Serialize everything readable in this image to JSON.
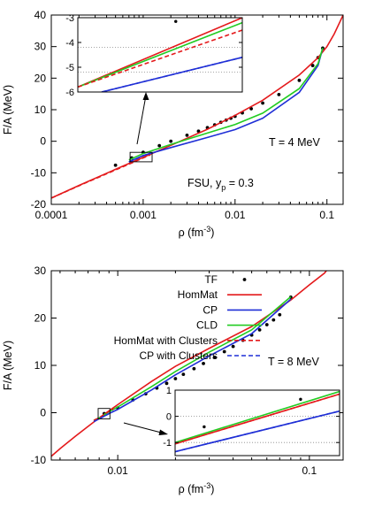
{
  "chart_data": [
    {
      "type": "line",
      "xscale": "log",
      "xlabel": "ρ (fm",
      "xlabel_sup": "-3",
      "xlabel_end": ")",
      "ylabel": "F/A (MeV)",
      "xlim": [
        0.0001,
        0.15
      ],
      "ylim": [
        -20,
        40
      ],
      "xticks": [
        0.0001,
        0.001,
        0.01,
        0.1
      ],
      "xtick_labels": [
        "0.0001",
        "0.001",
        "0.01",
        "0.1"
      ],
      "yticks": [
        -20,
        -10,
        0,
        10,
        20,
        30,
        40
      ],
      "ytick_labels": [
        "-20",
        "-10",
        "0",
        "10",
        "20",
        "30",
        "40"
      ],
      "annotations": [
        {
          "text": "T = 4 MeV",
          "x": 0.03,
          "y": 3
        },
        {
          "text": "FSU, y",
          "sub": "p",
          "rest": " = 0.3",
          "x": 0.0012,
          "y": -9.5
        }
      ],
      "zoom_box": {
        "xlim": [
          0.00072,
          0.00125
        ],
        "ylim": [
          -6.5,
          -3.5
        ]
      },
      "series": [
        {
          "name": "TF",
          "style": "points",
          "color": "#000000",
          "x": [
            0.0005,
            0.00075,
            0.001,
            0.0015,
            0.002,
            0.003,
            0.004,
            0.005,
            0.006,
            0.007,
            0.008,
            0.009,
            0.01,
            0.012,
            0.015,
            0.02,
            0.03,
            0.05,
            0.07,
            0.08,
            0.09
          ],
          "y": [
            -7.6,
            -5.3,
            -3.5,
            -1.4,
            0.0,
            1.9,
            3.2,
            4.3,
            5.2,
            6.0,
            6.7,
            7.3,
            7.9,
            9.0,
            10.3,
            12.1,
            14.8,
            19.3,
            24.0,
            26.5,
            29.5
          ]
        },
        {
          "name": "HomMat",
          "style": "solid",
          "color": "#e41a1c",
          "x": [
            0.0001,
            0.0002,
            0.0005,
            0.001,
            0.002,
            0.005,
            0.01,
            0.02,
            0.05,
            0.08,
            0.1,
            0.12,
            0.15
          ],
          "y": [
            -18.0,
            -14.0,
            -8.9,
            -5.1,
            -1.3,
            3.8,
            8.2,
            13.0,
            21.0,
            26.5,
            30.0,
            34.0,
            40.0
          ]
        },
        {
          "name": "CP",
          "style": "solid",
          "color": "#1f2fd6",
          "x": [
            0.0007,
            0.001,
            0.002,
            0.005,
            0.01,
            0.02,
            0.05,
            0.08,
            0.09
          ],
          "y": [
            -6.5,
            -4.5,
            -2.0,
            1.2,
            3.7,
            7.3,
            15.5,
            24.0,
            29.5
          ]
        },
        {
          "name": "CLD",
          "style": "solid",
          "color": "#22cc22",
          "x": [
            0.0007,
            0.001,
            0.002,
            0.005,
            0.01,
            0.02,
            0.05,
            0.08,
            0.09
          ],
          "y": [
            -5.9,
            -3.9,
            -1.0,
            2.6,
            5.3,
            8.9,
            16.7,
            24.6,
            29.6
          ]
        },
        {
          "name": "HomMat with Clusters",
          "style": "dashed",
          "color": "#e41a1c",
          "x": [
            0.0001,
            0.0002,
            0.0005,
            0.001,
            0.0012
          ],
          "y": [
            -18.0,
            -14.1,
            -9.1,
            -5.3,
            -4.3
          ]
        },
        {
          "name": "CP with Clusters",
          "style": "dashed",
          "color": "#1f2fd6",
          "x": [
            0.0007,
            0.001,
            0.0013
          ],
          "y": [
            -6.6,
            -4.6,
            -3.5
          ]
        }
      ]
    },
    {
      "type": "line",
      "xscale": "log",
      "xlabel": "ρ (fm",
      "xlabel_sup": "-3",
      "xlabel_end": ")",
      "ylabel": "F/A (MeV)",
      "xlim": [
        0.0045,
        0.15
      ],
      "ylim": [
        -10,
        30
      ],
      "xticks": [
        0.01,
        0.1
      ],
      "xtick_labels": [
        "0.01",
        "0.1"
      ],
      "yticks": [
        -10,
        0,
        10,
        20,
        30
      ],
      "ytick_labels": [
        "-10",
        "0",
        "10",
        "20",
        "30"
      ],
      "annotations": [
        {
          "text": "T = 8 MeV",
          "x": 0.085,
          "y": 14
        }
      ],
      "legend": {
        "position": "top-left",
        "entries": [
          "TF",
          "HomMat",
          "CP",
          "CLD",
          "HomMat with Clusters",
          "CP with Clusters"
        ]
      },
      "zoom_box": {
        "xlim": [
          0.0079,
          0.0091
        ],
        "ylim": [
          -1.3,
          0.9
        ]
      },
      "series": [
        {
          "name": "TF",
          "style": "points",
          "color": "#000000",
          "x": [
            0.0085,
            0.01,
            0.012,
            0.014,
            0.016,
            0.018,
            0.02,
            0.022,
            0.025,
            0.028,
            0.032,
            0.036,
            0.04,
            0.045,
            0.05,
            0.055,
            0.06,
            0.065,
            0.07,
            0.08
          ],
          "y": [
            -0.2,
            1.0,
            2.7,
            4.0,
            5.2,
            6.2,
            7.2,
            8.1,
            9.3,
            10.4,
            11.7,
            12.9,
            14.0,
            15.3,
            16.4,
            17.5,
            18.6,
            19.6,
            20.7,
            24.4
          ]
        },
        {
          "name": "HomMat",
          "style": "solid",
          "color": "#e41a1c",
          "x": [
            0.0045,
            0.005,
            0.006,
            0.007,
            0.008,
            0.009,
            0.01,
            0.015,
            0.02,
            0.03,
            0.05,
            0.08,
            0.1,
            0.12,
            0.14
          ],
          "y": [
            -9.2,
            -7.6,
            -5.0,
            -2.9,
            -1.1,
            0.4,
            1.7,
            6.6,
            9.8,
            13.6,
            18.2,
            23.8,
            27.0,
            29.5,
            33.0
          ]
        },
        {
          "name": "CP",
          "style": "solid",
          "color": "#1f2fd6",
          "x": [
            0.0075,
            0.008,
            0.009,
            0.01,
            0.015,
            0.02,
            0.03,
            0.05,
            0.08
          ],
          "y": [
            -1.8,
            -1.3,
            -0.2,
            0.7,
            4.8,
            8.0,
            12.0,
            16.7,
            24.0
          ]
        },
        {
          "name": "CLD",
          "style": "solid",
          "color": "#22cc22",
          "x": [
            0.0075,
            0.008,
            0.009,
            0.01,
            0.015,
            0.02,
            0.03,
            0.05,
            0.08
          ],
          "y": [
            -1.6,
            -1.1,
            0.2,
            1.2,
            5.5,
            8.7,
            12.8,
            17.5,
            24.5
          ]
        },
        {
          "name": "HomMat with Clusters",
          "style": "dashed",
          "color": "#e41a1c",
          "x": [
            0.0075,
            0.008,
            0.009,
            0.0095
          ],
          "y": [
            -1.6,
            -1.1,
            0.3,
            0.8
          ]
        },
        {
          "name": "CP with Clusters",
          "style": "dashed",
          "color": "#1f2fd6",
          "x": [
            0.0075,
            0.008,
            0.009,
            0.0095
          ],
          "y": [
            -1.9,
            -1.3,
            -0.2,
            0.3
          ]
        }
      ]
    }
  ],
  "insets": [
    {
      "parent": 0,
      "xlim": [
        0.00072,
        0.00125
      ],
      "ylim": [
        -6,
        -3
      ],
      "yticks": [
        -6,
        -5,
        -4,
        -3
      ],
      "ytick_labels": [
        "-6",
        "-5",
        "-4",
        "-3"
      ],
      "ygrid": [
        -5.2,
        -4.2
      ],
      "series": [
        {
          "name": "TF",
          "style": "points",
          "color": "#000000",
          "x": [
            0.001
          ],
          "y": [
            -3.15
          ]
        },
        {
          "name": "HomMat",
          "style": "solid",
          "color": "#e41a1c",
          "x": [
            0.00072,
            0.00125
          ],
          "y": [
            -5.8,
            -3.0
          ]
        },
        {
          "name": "CLD",
          "style": "solid",
          "color": "#22cc22",
          "x": [
            0.00072,
            0.00125
          ],
          "y": [
            -5.8,
            -3.2
          ]
        },
        {
          "name": "HomMat with Clusters",
          "style": "dashed",
          "color": "#e41a1c",
          "x": [
            0.00072,
            0.00125
          ],
          "y": [
            -5.8,
            -3.5
          ]
        },
        {
          "name": "CP",
          "style": "solid",
          "color": "#1f2fd6",
          "x": [
            0.00078,
            0.00125
          ],
          "y": [
            -6.0,
            -4.6
          ]
        },
        {
          "name": "CP with Clusters",
          "style": "dashed",
          "color": "#1f2fd6",
          "x": [
            0.00078,
            0.00125
          ],
          "y": [
            -6.0,
            -4.6
          ]
        }
      ]
    },
    {
      "parent": 1,
      "xlim": [
        0.0079,
        0.0091
      ],
      "ylim": [
        -1.5,
        1
      ],
      "yticks": [
        -1,
        0,
        1
      ],
      "ytick_labels": [
        "-1",
        "0",
        "1"
      ],
      "ygrid": [
        0,
        -1
      ],
      "series": [
        {
          "name": "TF",
          "style": "points",
          "color": "#000000",
          "x": [
            0.0081,
            0.0088
          ],
          "y": [
            -0.4,
            0.65
          ]
        },
        {
          "name": "HomMat",
          "style": "solid",
          "color": "#e41a1c",
          "x": [
            0.0079,
            0.0091
          ],
          "y": [
            -1.05,
            0.85
          ]
        },
        {
          "name": "CLD",
          "style": "solid",
          "color": "#22cc22",
          "x": [
            0.0079,
            0.0091
          ],
          "y": [
            -1.0,
            0.95
          ]
        },
        {
          "name": "HomMat with Clusters",
          "style": "dashed",
          "color": "#e41a1c",
          "x": [
            0.0079,
            0.0091
          ],
          "y": [
            -1.05,
            0.85
          ]
        },
        {
          "name": "CP",
          "style": "solid",
          "color": "#1f2fd6",
          "x": [
            0.0079,
            0.0091
          ],
          "y": [
            -1.35,
            0.2
          ]
        },
        {
          "name": "CP with Clusters",
          "style": "dashed",
          "color": "#1f2fd6",
          "x": [
            0.0079,
            0.0091
          ],
          "y": [
            -1.35,
            0.2
          ]
        }
      ]
    }
  ]
}
